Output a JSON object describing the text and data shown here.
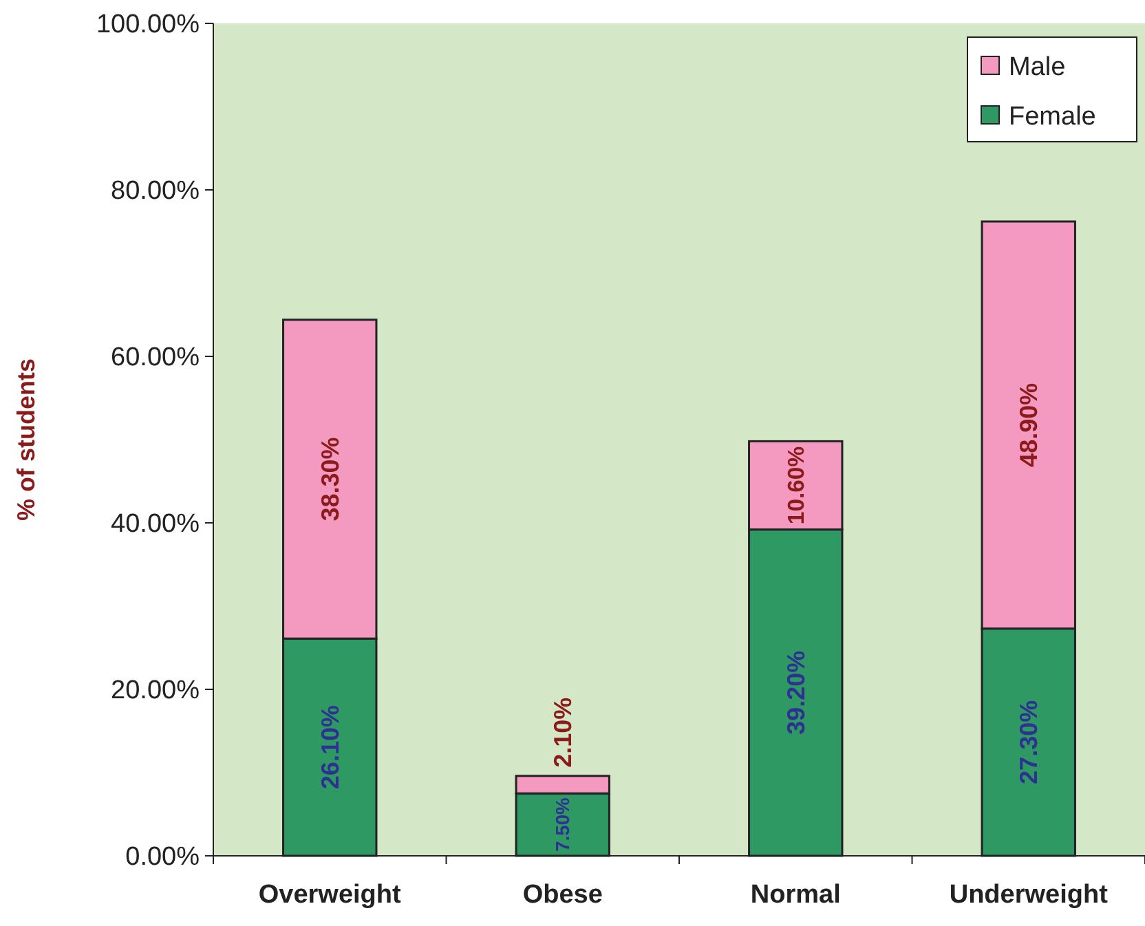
{
  "chart_data": {
    "type": "bar",
    "stacked": true,
    "ylabel": "% of students",
    "categories": [
      "Overweight",
      "Obese",
      "Normal",
      "Underweight"
    ],
    "series": [
      {
        "name": "Female",
        "color": "#2e9963",
        "values": [
          26.1,
          7.5,
          39.2,
          27.3
        ],
        "value_labels": [
          "26.10%",
          "7.50%",
          "39.20%",
          "27.30%"
        ]
      },
      {
        "name": "Male",
        "color": "#f49ac1",
        "values": [
          38.3,
          2.1,
          10.6,
          48.9
        ],
        "value_labels": [
          "38.30%",
          "2.10%",
          "10.60%",
          "48.90%"
        ]
      }
    ],
    "ylim": [
      0,
      100
    ],
    "yticks": [
      {
        "value": 0,
        "label": "0.00%"
      },
      {
        "value": 20,
        "label": "20.00%"
      },
      {
        "value": 40,
        "label": "40.00%"
      },
      {
        "value": 60,
        "label": "60.00%"
      },
      {
        "value": 80,
        "label": "80.00%"
      },
      {
        "value": 100,
        "label": "100.00%"
      }
    ],
    "grid": false,
    "legend": "top right"
  }
}
